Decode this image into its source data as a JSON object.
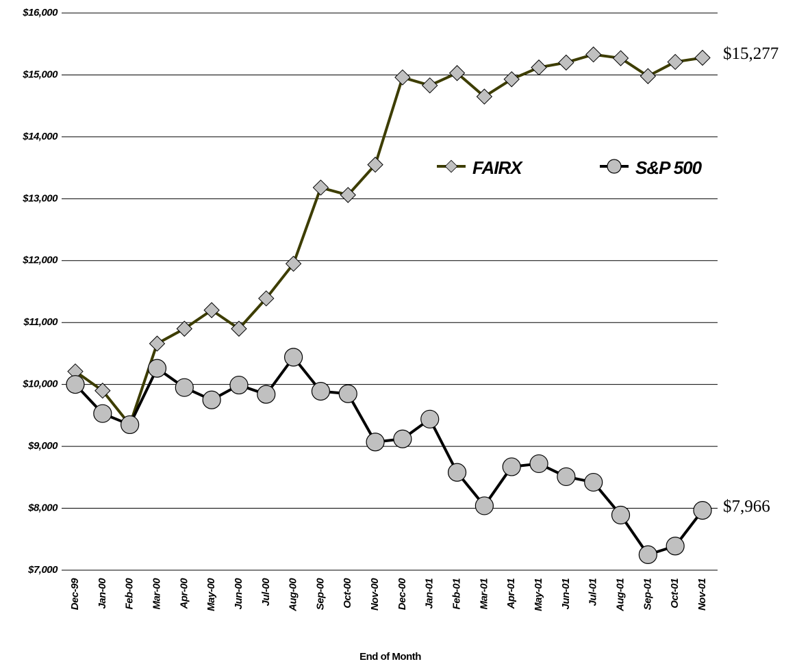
{
  "chart_data": {
    "type": "line",
    "x_label": "End of Month",
    "categories": [
      "Dec-99",
      "Jan-00",
      "Feb-00",
      "Mar-00",
      "Apr-00",
      "May-00",
      "Jun-00",
      "Jul-00",
      "Aug-00",
      "Sep-00",
      "Oct-00",
      "Nov-00",
      "Dec-00",
      "Jan-01",
      "Feb-01",
      "Mar-01",
      "Apr-01",
      "May-01",
      "Jun-01",
      "Jul-01",
      "Aug-01",
      "Sep-01",
      "Oct-01",
      "Nov-01"
    ],
    "series": [
      {
        "name": "FAIRX",
        "color": "#3d3d00",
        "marker": "diamond",
        "marker_color": "#c0c0c0",
        "values": [
          10210,
          9900,
          9350,
          10660,
          10900,
          11200,
          10900,
          11390,
          11950,
          13180,
          13060,
          13550,
          14960,
          14830,
          15030,
          14650,
          14930,
          15120,
          15200,
          15330,
          15270,
          14980,
          15210,
          15277
        ],
        "value_labels": [
          null,
          null,
          null,
          null,
          null,
          null,
          null,
          null,
          null,
          null,
          null,
          null,
          null,
          null,
          null,
          null,
          null,
          null,
          null,
          null,
          null,
          null,
          null,
          "$15,277"
        ]
      },
      {
        "name": "S&P 500",
        "color": "#000000",
        "marker": "circle",
        "marker_color": "#c0c0c0",
        "values": [
          10000,
          9530,
          9350,
          10260,
          9950,
          9750,
          9990,
          9840,
          10440,
          9890,
          9850,
          9070,
          9120,
          9440,
          8580,
          8040,
          8670,
          8720,
          8510,
          8420,
          7890,
          7250,
          7390,
          7966
        ],
        "value_labels": [
          null,
          null,
          null,
          null,
          null,
          null,
          null,
          null,
          null,
          null,
          null,
          null,
          null,
          null,
          null,
          null,
          null,
          null,
          null,
          null,
          null,
          null,
          null,
          "$7,966"
        ]
      }
    ],
    "ylim": [
      7000,
      16000
    ],
    "yticks": [
      {
        "value": 7000,
        "label": "$7,000"
      },
      {
        "value": 8000,
        "label": "$8,000"
      },
      {
        "value": 9000,
        "label": "$9,000"
      },
      {
        "value": 10000,
        "label": "$10,000"
      },
      {
        "value": 11000,
        "label": "$11,000"
      },
      {
        "value": 12000,
        "label": "$12,000"
      },
      {
        "value": 13000,
        "label": "$13,000"
      },
      {
        "value": 14000,
        "label": "$14,000"
      },
      {
        "value": 15000,
        "label": "$15,000"
      },
      {
        "value": 16000,
        "label": "$16,000"
      }
    ],
    "grid": true,
    "legend": "inside-upper-right"
  }
}
